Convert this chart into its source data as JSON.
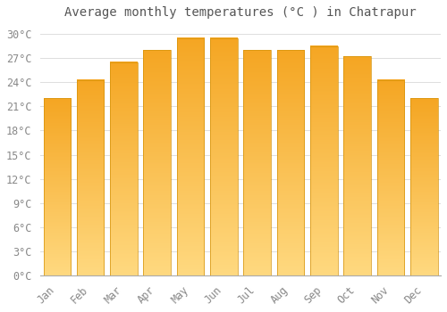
{
  "months": [
    "Jan",
    "Feb",
    "Mar",
    "Apr",
    "May",
    "Jun",
    "Jul",
    "Aug",
    "Sep",
    "Oct",
    "Nov",
    "Dec"
  ],
  "temperatures": [
    22.0,
    24.3,
    26.5,
    28.0,
    29.5,
    29.5,
    28.0,
    28.0,
    28.5,
    27.2,
    24.3,
    22.0
  ],
  "bar_color_top": "#F5A623",
  "bar_color_bottom": "#FFD980",
  "bar_edge_color": "#D4920A",
  "title": "Average monthly temperatures (°C ) in Chatrapur",
  "ylim": [
    0,
    31
  ],
  "yticks": [
    0,
    3,
    6,
    9,
    12,
    15,
    18,
    21,
    24,
    27,
    30
  ],
  "ylabel_suffix": "°C",
  "background_color": "#FFFFFF",
  "grid_color": "#DDDDDD",
  "title_fontsize": 10,
  "tick_fontsize": 8.5
}
